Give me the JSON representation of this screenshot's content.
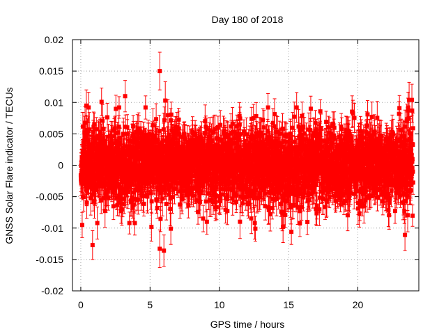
{
  "chart_data": {
    "type": "scatter",
    "title": "Day 180 of 2018",
    "xlabel": "GPS time / hours",
    "ylabel": "GNSS Solar Flare indicator / TECUs",
    "xlim": [
      -0.6,
      24.4
    ],
    "ylim": [
      -0.02,
      0.02
    ],
    "xticks": [
      0,
      5,
      10,
      15,
      20
    ],
    "xtick_labels": [
      "0",
      "5",
      "10",
      "15",
      "20"
    ],
    "yticks": [
      -0.02,
      -0.015,
      -0.01,
      -0.005,
      0,
      0.005,
      0.01,
      0.015,
      0.02
    ],
    "ytick_labels": [
      "-0.02",
      "-0.015",
      "-0.01",
      "-0.005",
      "0",
      "0.005",
      "0.01",
      "0.015",
      "0.02"
    ],
    "grid": true,
    "legend": "none",
    "series": [
      {
        "name": "GNSS Solar Flare indicator",
        "color": "#ff0000",
        "marker": "square",
        "error_bars": true,
        "n_points": 2880,
        "x_range_hours": [
          0,
          23.99
        ],
        "typical_spread_tecu": 0.004,
        "typical_error_tecu": 0.0022,
        "extreme_points": [
          {
            "x": 5.7,
            "y": 0.015,
            "error": 0.003
          },
          {
            "x": 5.7,
            "y": -0.0133,
            "error": 0.003
          },
          {
            "x": 6.0,
            "y": -0.0136,
            "error": 0.0025
          },
          {
            "x": 0.85,
            "y": -0.0127,
            "error": 0.0023
          },
          {
            "x": 23.4,
            "y": -0.0111,
            "error": 0.0025
          },
          {
            "x": 3.2,
            "y": 0.011,
            "error": 0.0025
          },
          {
            "x": 23.7,
            "y": 0.0104,
            "error": 0.0028
          },
          {
            "x": 23.9,
            "y": 0.0104,
            "error": 0.0025
          },
          {
            "x": 0.1,
            "y": -0.0095,
            "error": 0.002
          },
          {
            "x": 0.4,
            "y": 0.0095,
            "error": 0.0025
          },
          {
            "x": 1.5,
            "y": 0.0101,
            "error": 0.0022
          },
          {
            "x": 6.1,
            "y": 0.0103,
            "error": 0.003
          },
          {
            "x": 12.6,
            "y": -0.0101,
            "error": 0.002
          },
          {
            "x": 15.2,
            "y": -0.0106,
            "error": 0.002
          },
          {
            "x": 14.6,
            "y": -0.0098,
            "error": 0.0025
          },
          {
            "x": 5.1,
            "y": -0.0098,
            "error": 0.0023
          },
          {
            "x": 6.5,
            "y": -0.0101,
            "error": 0.0025
          },
          {
            "x": 23.0,
            "y": 0.0091,
            "error": 0.002
          },
          {
            "x": 20.7,
            "y": 0.0081,
            "error": 0.0022
          },
          {
            "x": 16.6,
            "y": 0.009,
            "error": 0.002
          },
          {
            "x": 9.1,
            "y": -0.009,
            "error": 0.002
          },
          {
            "x": 20.1,
            "y": -0.006,
            "error": 0.002
          }
        ]
      }
    ]
  }
}
